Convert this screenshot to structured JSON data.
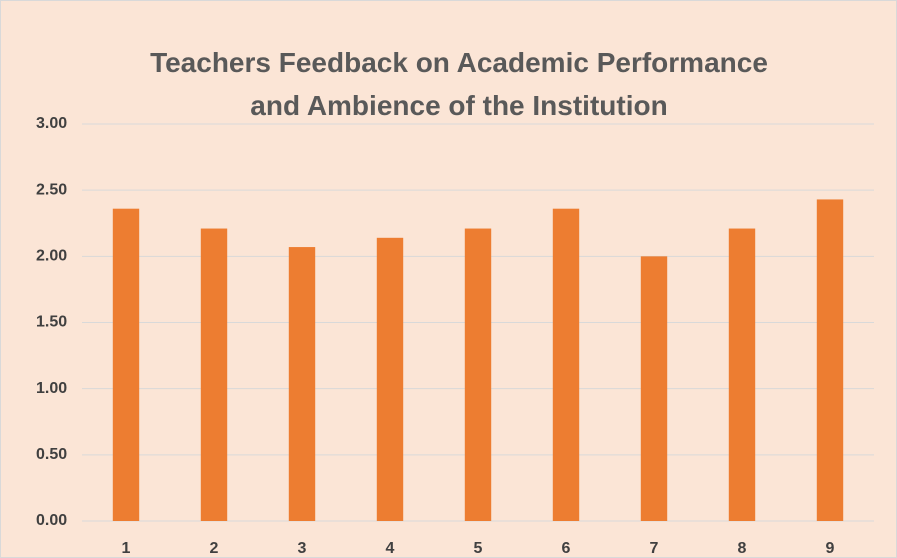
{
  "chart_data": {
    "type": "bar",
    "title": "Teachers Feedback on Academic Performance and Ambience of the Institution",
    "categories": [
      "1",
      "2",
      "3",
      "4",
      "5",
      "6",
      "7",
      "8",
      "9"
    ],
    "values": [
      2.36,
      2.21,
      2.07,
      2.14,
      2.21,
      2.36,
      2.0,
      2.21,
      2.43
    ],
    "color": "#ed7d31",
    "ylim": [
      0,
      3
    ],
    "yticks": [
      {
        "value": 0,
        "label": "0.00"
      },
      {
        "value": 0.5,
        "label": "0.50"
      },
      {
        "value": 1,
        "label": "1.00"
      },
      {
        "value": 1.5,
        "label": "1.50"
      },
      {
        "value": 2,
        "label": "2.00"
      },
      {
        "value": 2.5,
        "label": "2.50"
      },
      {
        "value": 3,
        "label": "3.00"
      }
    ],
    "grid": true
  }
}
